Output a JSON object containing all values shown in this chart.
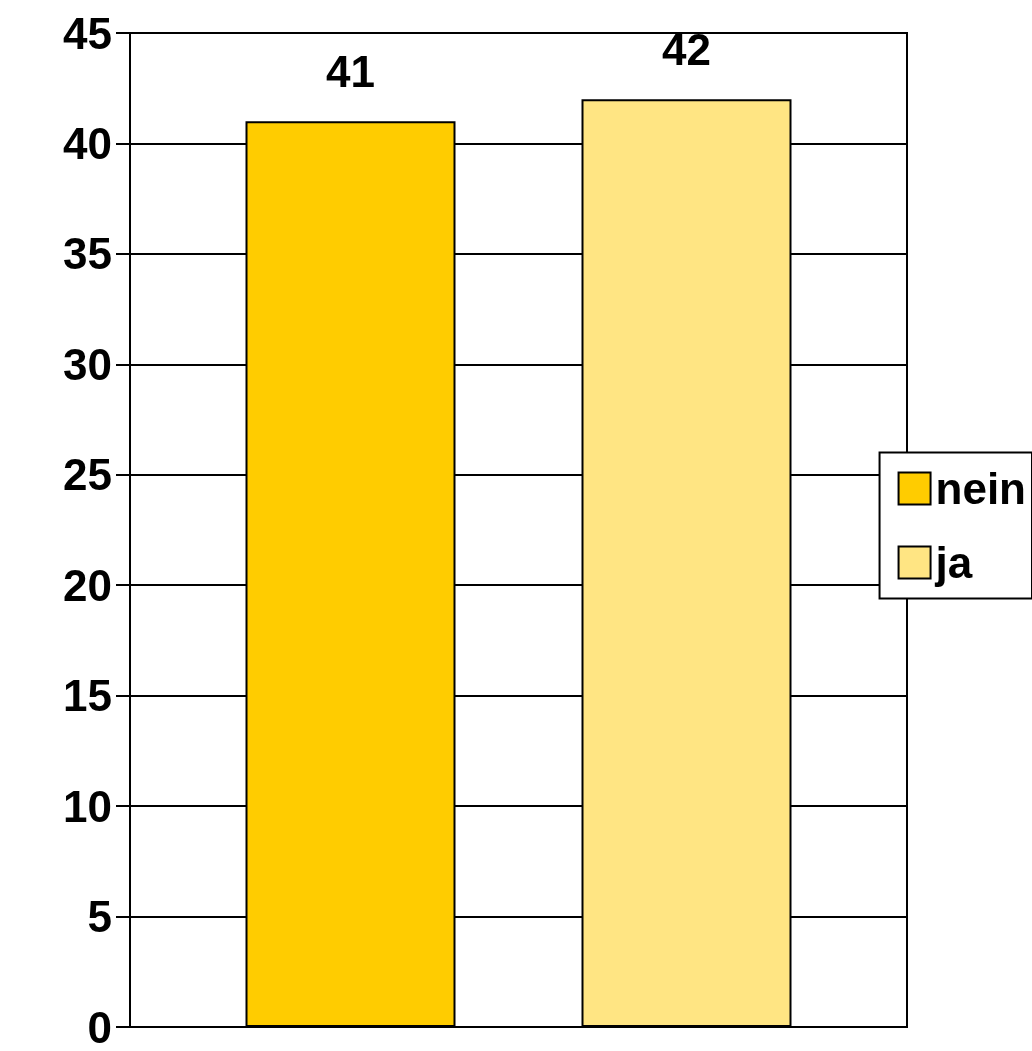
{
  "chart_data": {
    "type": "bar",
    "categories": [
      null
    ],
    "series": [
      {
        "name": "nein",
        "color": "#ffcc00",
        "values": [
          41
        ]
      },
      {
        "name": "ja",
        "color": "#ffe583",
        "values": [
          42
        ]
      }
    ],
    "ylim": [
      0,
      45
    ],
    "yticks": [
      0,
      5,
      10,
      15,
      20,
      25,
      30,
      35,
      40,
      45
    ],
    "grid": "y",
    "legend": "right",
    "data_labels": true
  }
}
